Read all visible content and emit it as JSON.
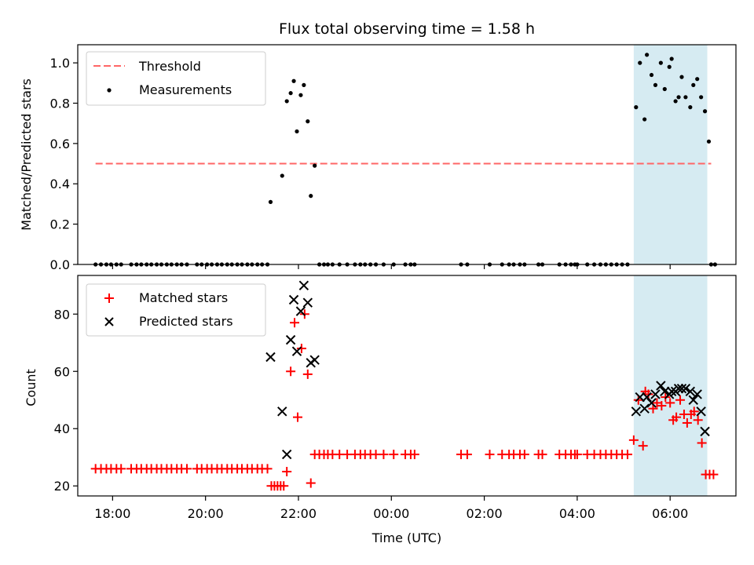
{
  "chart_data": [
    {
      "type": "scatter",
      "title": "Flux total observing time = 1.58 h",
      "xlabel": "",
      "ylabel": "Matched/Predicted stars",
      "x_unit": "hours UTC",
      "xlim": [
        "17:15",
        "07:25"
      ],
      "ylim": [
        0,
        1.09
      ],
      "yticks": [
        "0.0",
        "0.2",
        "0.4",
        "0.6",
        "0.8",
        "1.0"
      ],
      "highlight_span": {
        "from": "05:13",
        "to": "06:48",
        "color": "#add8e6"
      },
      "threshold": {
        "name": "Threshold",
        "y": 0.5,
        "x_from": "17:38",
        "x_to": "06:53",
        "color": "#ff6666",
        "style": "dashed"
      },
      "legend": {
        "position": "upper-left",
        "entries": [
          "Threshold",
          "Measurements"
        ]
      },
      "series": [
        {
          "name": "Measurements",
          "marker": "dot",
          "color": "#000000",
          "points": [
            [
              "17:38",
              0
            ],
            [
              "17:45",
              0
            ],
            [
              "17:52",
              0
            ],
            [
              "17:58",
              0
            ],
            [
              "18:05",
              0
            ],
            [
              "18:11",
              0
            ],
            [
              "18:24",
              0
            ],
            [
              "18:31",
              0
            ],
            [
              "18:37",
              0
            ],
            [
              "18:44",
              0
            ],
            [
              "18:50",
              0
            ],
            [
              "18:57",
              0
            ],
            [
              "19:03",
              0
            ],
            [
              "19:10",
              0
            ],
            [
              "19:16",
              0
            ],
            [
              "19:23",
              0
            ],
            [
              "19:29",
              0
            ],
            [
              "19:36",
              0
            ],
            [
              "19:49",
              0
            ],
            [
              "19:55",
              0
            ],
            [
              "20:02",
              0
            ],
            [
              "20:08",
              0
            ],
            [
              "20:15",
              0
            ],
            [
              "20:21",
              0
            ],
            [
              "20:28",
              0
            ],
            [
              "20:34",
              0
            ],
            [
              "20:41",
              0
            ],
            [
              "20:47",
              0
            ],
            [
              "20:54",
              0
            ],
            [
              "21:00",
              0
            ],
            [
              "21:07",
              0
            ],
            [
              "21:13",
              0
            ],
            [
              "21:20",
              0
            ],
            [
              "21:24",
              0.31
            ],
            [
              "21:39",
              0.44
            ],
            [
              "21:45",
              0.81
            ],
            [
              "21:50",
              0.85
            ],
            [
              "21:54",
              0.91
            ],
            [
              "21:58",
              0.66
            ],
            [
              "22:03",
              0.84
            ],
            [
              "22:07",
              0.89
            ],
            [
              "22:12",
              0.71
            ],
            [
              "22:16",
              0.34
            ],
            [
              "22:21",
              0.49
            ],
            [
              "22:27",
              0
            ],
            [
              "22:33",
              0
            ],
            [
              "22:38",
              0
            ],
            [
              "22:44",
              0
            ],
            [
              "22:53",
              0
            ],
            [
              "23:03",
              0
            ],
            [
              "23:13",
              0
            ],
            [
              "23:20",
              0
            ],
            [
              "23:26",
              0
            ],
            [
              "23:33",
              0
            ],
            [
              "23:40",
              0
            ],
            [
              "23:50",
              0
            ],
            [
              "00:03",
              0
            ],
            [
              "00:18",
              0
            ],
            [
              "00:25",
              0
            ],
            [
              "00:30",
              0
            ],
            [
              "01:30",
              0
            ],
            [
              "01:38",
              0
            ],
            [
              "02:07",
              0
            ],
            [
              "02:23",
              0
            ],
            [
              "02:32",
              0
            ],
            [
              "02:38",
              0
            ],
            [
              "02:46",
              0
            ],
            [
              "02:52",
              0
            ],
            [
              "03:10",
              0
            ],
            [
              "03:15",
              0
            ],
            [
              "03:37",
              0
            ],
            [
              "03:45",
              0
            ],
            [
              "03:52",
              0
            ],
            [
              "03:57",
              0
            ],
            [
              "04:00",
              0
            ],
            [
              "04:13",
              0
            ],
            [
              "04:22",
              0
            ],
            [
              "04:30",
              0
            ],
            [
              "04:37",
              0
            ],
            [
              "04:44",
              0
            ],
            [
              "04:51",
              0
            ],
            [
              "04:58",
              0
            ],
            [
              "05:05",
              0
            ],
            [
              "05:16",
              0.78
            ],
            [
              "05:21",
              1.0
            ],
            [
              "05:27",
              0.72
            ],
            [
              "05:30",
              1.04
            ],
            [
              "05:36",
              0.94
            ],
            [
              "05:41",
              0.89
            ],
            [
              "05:48",
              1.0
            ],
            [
              "05:53",
              0.87
            ],
            [
              "05:59",
              0.98
            ],
            [
              "06:02",
              1.02
            ],
            [
              "06:07",
              0.81
            ],
            [
              "06:11",
              0.83
            ],
            [
              "06:15",
              0.93
            ],
            [
              "06:20",
              0.83
            ],
            [
              "06:26",
              0.78
            ],
            [
              "06:30",
              0.89
            ],
            [
              "06:35",
              0.92
            ],
            [
              "06:40",
              0.83
            ],
            [
              "06:45",
              0.76
            ],
            [
              "06:50",
              0.61
            ],
            [
              "06:53",
              0
            ],
            [
              "06:58",
              0
            ]
          ]
        }
      ]
    },
    {
      "type": "scatter",
      "title": "",
      "xlabel": "Time (UTC)",
      "ylabel": "Count",
      "x_unit": "hours UTC",
      "xlim": [
        "17:15",
        "07:25"
      ],
      "ylim": [
        16.5,
        93.5
      ],
      "xticks": [
        "18:00",
        "20:00",
        "22:00",
        "00:00",
        "02:00",
        "04:00",
        "06:00"
      ],
      "yticks": [
        "20",
        "40",
        "60",
        "80"
      ],
      "highlight_span": {
        "from": "05:13",
        "to": "06:48",
        "color": "#add8e6"
      },
      "legend": {
        "position": "upper-left",
        "entries": [
          "Matched stars",
          "Predicted stars"
        ]
      },
      "series": [
        {
          "name": "Matched stars",
          "marker": "plus",
          "color": "#ff0000",
          "points": [
            [
              "17:38",
              26
            ],
            [
              "17:45",
              26
            ],
            [
              "17:52",
              26
            ],
            [
              "17:58",
              26
            ],
            [
              "18:05",
              26
            ],
            [
              "18:11",
              26
            ],
            [
              "18:24",
              26
            ],
            [
              "18:31",
              26
            ],
            [
              "18:37",
              26
            ],
            [
              "18:44",
              26
            ],
            [
              "18:50",
              26
            ],
            [
              "18:57",
              26
            ],
            [
              "19:03",
              26
            ],
            [
              "19:10",
              26
            ],
            [
              "19:16",
              26
            ],
            [
              "19:23",
              26
            ],
            [
              "19:29",
              26
            ],
            [
              "19:36",
              26
            ],
            [
              "19:49",
              26
            ],
            [
              "19:55",
              26
            ],
            [
              "20:02",
              26
            ],
            [
              "20:08",
              26
            ],
            [
              "20:15",
              26
            ],
            [
              "20:21",
              26
            ],
            [
              "20:28",
              26
            ],
            [
              "20:34",
              26
            ],
            [
              "20:41",
              26
            ],
            [
              "20:47",
              26
            ],
            [
              "20:54",
              26
            ],
            [
              "21:00",
              26
            ],
            [
              "21:07",
              26
            ],
            [
              "21:13",
              26
            ],
            [
              "21:20",
              26
            ],
            [
              "21:25",
              20
            ],
            [
              "21:29",
              20
            ],
            [
              "21:33",
              20
            ],
            [
              "21:37",
              20
            ],
            [
              "21:41",
              20
            ],
            [
              "21:45",
              25
            ],
            [
              "21:50",
              60
            ],
            [
              "21:55",
              77
            ],
            [
              "21:59",
              44
            ],
            [
              "22:04",
              68
            ],
            [
              "22:08",
              80
            ],
            [
              "22:12",
              59
            ],
            [
              "22:16",
              21
            ],
            [
              "22:21",
              31
            ],
            [
              "22:27",
              31
            ],
            [
              "22:33",
              31
            ],
            [
              "22:38",
              31
            ],
            [
              "22:44",
              31
            ],
            [
              "22:53",
              31
            ],
            [
              "23:03",
              31
            ],
            [
              "23:13",
              31
            ],
            [
              "23:20",
              31
            ],
            [
              "23:26",
              31
            ],
            [
              "23:33",
              31
            ],
            [
              "23:40",
              31
            ],
            [
              "23:50",
              31
            ],
            [
              "00:03",
              31
            ],
            [
              "00:18",
              31
            ],
            [
              "00:25",
              31
            ],
            [
              "00:30",
              31
            ],
            [
              "01:30",
              31
            ],
            [
              "01:38",
              31
            ],
            [
              "02:07",
              31
            ],
            [
              "02:23",
              31
            ],
            [
              "02:32",
              31
            ],
            [
              "02:38",
              31
            ],
            [
              "02:46",
              31
            ],
            [
              "02:52",
              31
            ],
            [
              "03:10",
              31
            ],
            [
              "03:15",
              31
            ],
            [
              "03:37",
              31
            ],
            [
              "03:45",
              31
            ],
            [
              "03:52",
              31
            ],
            [
              "03:57",
              31
            ],
            [
              "04:00",
              31
            ],
            [
              "04:13",
              31
            ],
            [
              "04:22",
              31
            ],
            [
              "04:30",
              31
            ],
            [
              "04:37",
              31
            ],
            [
              "04:44",
              31
            ],
            [
              "04:51",
              31
            ],
            [
              "04:58",
              31
            ],
            [
              "05:05",
              31
            ],
            [
              "05:13",
              36
            ],
            [
              "05:19",
              50
            ],
            [
              "05:25",
              34
            ],
            [
              "05:28",
              53
            ],
            [
              "05:32",
              52
            ],
            [
              "05:38",
              47
            ],
            [
              "05:43",
              49
            ],
            [
              "05:49",
              48
            ],
            [
              "05:54",
              51
            ],
            [
              "06:00",
              49
            ],
            [
              "06:04",
              43
            ],
            [
              "06:08",
              44
            ],
            [
              "06:13",
              50
            ],
            [
              "06:18",
              45
            ],
            [
              "06:22",
              42
            ],
            [
              "06:27",
              45
            ],
            [
              "06:31",
              46
            ],
            [
              "06:36",
              43
            ],
            [
              "06:41",
              35
            ],
            [
              "06:46",
              24
            ],
            [
              "06:51",
              24
            ],
            [
              "06:56",
              24
            ]
          ]
        },
        {
          "name": "Predicted stars",
          "marker": "x",
          "color": "#000000",
          "points": [
            [
              "21:24",
              65
            ],
            [
              "21:39",
              46
            ],
            [
              "21:45",
              31
            ],
            [
              "21:50",
              71
            ],
            [
              "21:54",
              85
            ],
            [
              "21:58",
              67
            ],
            [
              "22:03",
              81
            ],
            [
              "22:07",
              90
            ],
            [
              "22:12",
              84
            ],
            [
              "22:16",
              63
            ],
            [
              "22:21",
              64
            ],
            [
              "05:16",
              46
            ],
            [
              "05:21",
              51
            ],
            [
              "05:27",
              47
            ],
            [
              "05:30",
              51
            ],
            [
              "05:36",
              49
            ],
            [
              "05:41",
              52
            ],
            [
              "05:48",
              55
            ],
            [
              "05:53",
              53
            ],
            [
              "05:59",
              52
            ],
            [
              "06:02",
              53
            ],
            [
              "06:07",
              53
            ],
            [
              "06:11",
              54
            ],
            [
              "06:15",
              54
            ],
            [
              "06:20",
              54
            ],
            [
              "06:26",
              53
            ],
            [
              "06:30",
              50
            ],
            [
              "06:35",
              52
            ],
            [
              "06:40",
              46
            ],
            [
              "06:45",
              39
            ]
          ]
        }
      ]
    }
  ]
}
